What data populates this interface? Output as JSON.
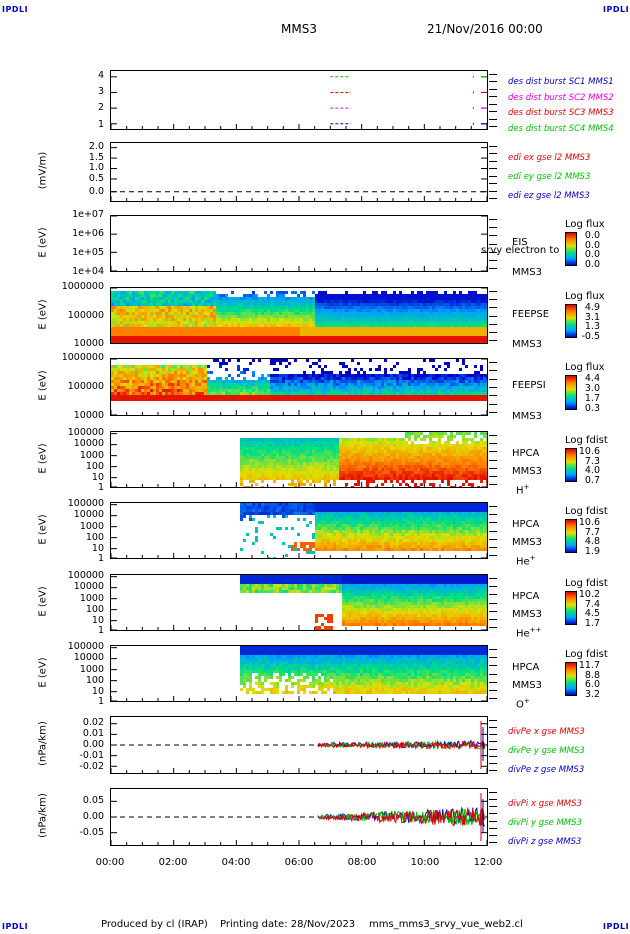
{
  "corner_labels": {
    "tl": "IPDLI",
    "tr": "IPDLI",
    "bl": "IPDLI",
    "br": "IPDLI"
  },
  "header": {
    "spacecraft": "MMS3",
    "date": "21/Nov/2016 00:00"
  },
  "footer": {
    "produced_by": "Produced by cl (IRAP)",
    "printing_date": "Printing date: 28/Nov/2023",
    "script": "mms_mms3_srvy_vue_web2.cl"
  },
  "x_axis": {
    "ticks": [
      "00:00",
      "02:00",
      "04:00",
      "06:00",
      "08:00",
      "10:00",
      "12:00"
    ]
  },
  "colors": {
    "mms1": "#0000c0",
    "mms2": "#e000e0",
    "mms3": "#e00000",
    "mms4": "#00c000"
  },
  "chart_data": [
    {
      "type": "line",
      "title": "des dist burst",
      "y_ticks": [
        "4",
        "3",
        "2",
        "1"
      ],
      "legend": [
        {
          "name": "des dist burst SC1 MMS1",
          "color": "#0000c0"
        },
        {
          "name": "des dist burst SC2 MMS2",
          "color": "#e000e0"
        },
        {
          "name": "des dist burst SC3 MMS3",
          "color": "#e00000"
        },
        {
          "name": "des dist burst SC4 MMS4",
          "color": "#00c000"
        }
      ]
    },
    {
      "type": "line",
      "ylabel": "(mV/m)",
      "y_ticks": [
        "2.0",
        "1.5",
        "1.0",
        "0.5",
        "0.0"
      ],
      "legend": [
        {
          "name": "edi ex gse l2 MMS3",
          "color": "#e00000"
        },
        {
          "name": "edi ey gse l2 MMS3",
          "color": "#00c000"
        },
        {
          "name": "edi ez gse l2 MMS3",
          "color": "#0000c0"
        }
      ]
    },
    {
      "type": "heatmap",
      "ylabel": "E (eV)",
      "y_ticks": [
        "1e+07",
        "1e+06",
        "1e+05",
        "1e+04"
      ],
      "side": [
        "EIS",
        "MMS3"
      ],
      "overlay": "srvy electron to",
      "cb_title": "Log flux",
      "cb_values": [
        "0.0",
        "0.0",
        "0.0",
        "0.0"
      ]
    },
    {
      "type": "heatmap",
      "ylabel": "E (eV)",
      "y_ticks": [
        "1000000",
        "100000",
        "10000"
      ],
      "side": [
        "FEEPSE",
        "MMS3"
      ],
      "cb_title": "Log flux",
      "cb_values": [
        "4.9",
        "3.1",
        "1.3",
        "-0.5"
      ]
    },
    {
      "type": "heatmap",
      "ylabel": "E (eV)",
      "y_ticks": [
        "1000000",
        "100000",
        "10000"
      ],
      "side": [
        "FEEPSI",
        "MMS3"
      ],
      "cb_title": "Log flux",
      "cb_values": [
        "4.4",
        "3.0",
        "1.7",
        "0.3"
      ]
    },
    {
      "type": "heatmap",
      "ylabel": "E (eV)",
      "y_ticks": [
        "100000",
        "10000",
        "1000",
        "100",
        "10",
        "1"
      ],
      "side": [
        "HPCA",
        "MMS3"
      ],
      "species": "H",
      "species_sup": "+",
      "cb_title": "Log fdist",
      "cb_values": [
        "10.6",
        "7.3",
        "4.0",
        "0.7"
      ]
    },
    {
      "type": "heatmap",
      "ylabel": "E (eV)",
      "y_ticks": [
        "100000",
        "10000",
        "1000",
        "100",
        "10",
        "1"
      ],
      "side": [
        "HPCA",
        "MMS3"
      ],
      "species": "He",
      "species_sup": "+",
      "cb_title": "Log fdist",
      "cb_values": [
        "10.6",
        "7.7",
        "4.8",
        "1.9"
      ]
    },
    {
      "type": "heatmap",
      "ylabel": "E (eV)",
      "y_ticks": [
        "100000",
        "10000",
        "1000",
        "100",
        "10",
        "1"
      ],
      "side": [
        "HPCA",
        "MMS3"
      ],
      "species": "He",
      "species_sup": "++",
      "cb_title": "Log fdist",
      "cb_values": [
        "10.2",
        "7.4",
        "4.5",
        "1.7"
      ]
    },
    {
      "type": "heatmap",
      "ylabel": "E (eV)",
      "y_ticks": [
        "100000",
        "10000",
        "1000",
        "100",
        "10",
        "1"
      ],
      "side": [
        "HPCA",
        "MMS3"
      ],
      "species": "O",
      "species_sup": "+",
      "cb_title": "Log fdist",
      "cb_values": [
        "11.7",
        "8.8",
        "6.0",
        "3.2"
      ]
    },
    {
      "type": "line",
      "ylabel": "(nPa/km)",
      "y_ticks": [
        "0.02",
        "0.01",
        "0.00",
        "-0.01",
        "-0.02"
      ],
      "legend": [
        {
          "name": "divPe x gse MMS3",
          "color": "#e00000"
        },
        {
          "name": "divPe y gse MMS3",
          "color": "#00c000"
        },
        {
          "name": "divPe z gse MMS3",
          "color": "#0000c0"
        }
      ]
    },
    {
      "type": "line",
      "ylabel": "(nPa/km)",
      "y_ticks": [
        "0.05",
        "0.00",
        "-0.05"
      ],
      "legend": [
        {
          "name": "divPi x gse MMS3",
          "color": "#e00000"
        },
        {
          "name": "divPi y gse MMS3",
          "color": "#00c000"
        },
        {
          "name": "divPi z gse MMS3",
          "color": "#0000c0"
        }
      ]
    }
  ]
}
